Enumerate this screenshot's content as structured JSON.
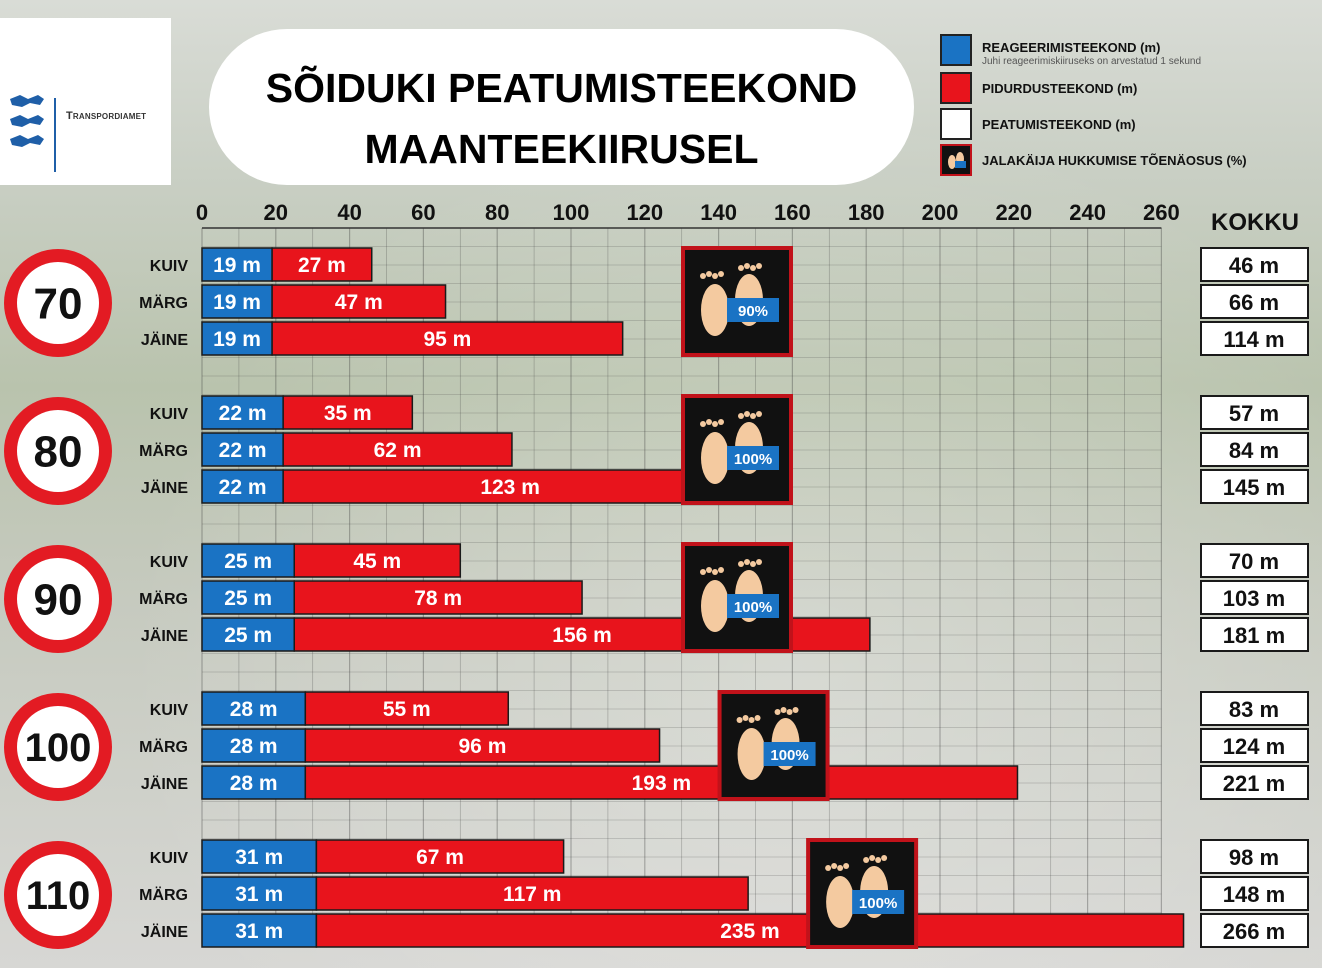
{
  "organization": "Transpordiamet",
  "title_lines": [
    "SÕIDUKI PEATUMISTEEKOND",
    "MAANTEEKIIRUSEL"
  ],
  "legend": [
    {
      "label": "REAGEERIMISTEEKOND (m)",
      "note": "Juhi reageerimiskiiruseks on arvestatud 1 sekund",
      "color": "#1a73c4"
    },
    {
      "label": "PIDURDUSTEEKOND (m)",
      "color": "#e8141c"
    },
    {
      "label": "PEATUMISTEEKOND (m)",
      "color": "#ffffff"
    },
    {
      "label": "JALAKÄIJA HUKKUMISE TÕENÄOSUS (%)",
      "icon": "footprints-icon"
    }
  ],
  "chart_data": {
    "type": "bar",
    "orientation": "horizontal",
    "stacked": true,
    "xlim": [
      0,
      260
    ],
    "x_ticks": [
      0,
      20,
      40,
      60,
      80,
      100,
      120,
      140,
      160,
      180,
      200,
      220,
      240,
      260
    ],
    "grid": true,
    "total_header": "KOKKU",
    "colors": {
      "reaction": "#1a73c4",
      "braking": "#e8141c"
    },
    "groups": [
      {
        "speed": "70",
        "fatality": "90%",
        "rows": [
          {
            "condition": "KUIV",
            "reaction": 19,
            "braking": 27,
            "total": 46
          },
          {
            "condition": "MÄRG",
            "reaction": 19,
            "braking": 47,
            "total": 66
          },
          {
            "condition": "JÄINE",
            "reaction": 19,
            "braking": 95,
            "total": 114
          }
        ]
      },
      {
        "speed": "80",
        "fatality": "100%",
        "rows": [
          {
            "condition": "KUIV",
            "reaction": 22,
            "braking": 35,
            "total": 57
          },
          {
            "condition": "MÄRG",
            "reaction": 22,
            "braking": 62,
            "total": 84
          },
          {
            "condition": "JÄINE",
            "reaction": 22,
            "braking": 123,
            "total": 145
          }
        ]
      },
      {
        "speed": "90",
        "fatality": "100%",
        "rows": [
          {
            "condition": "KUIV",
            "reaction": 25,
            "braking": 45,
            "total": 70
          },
          {
            "condition": "MÄRG",
            "reaction": 25,
            "braking": 78,
            "total": 103
          },
          {
            "condition": "JÄINE",
            "reaction": 25,
            "braking": 156,
            "total": 181
          }
        ]
      },
      {
        "speed": "100",
        "fatality": "100%",
        "rows": [
          {
            "condition": "KUIV",
            "reaction": 28,
            "braking": 55,
            "total": 83
          },
          {
            "condition": "MÄRG",
            "reaction": 28,
            "braking": 96,
            "total": 124
          },
          {
            "condition": "JÄINE",
            "reaction": 28,
            "braking": 193,
            "total": 221
          }
        ]
      },
      {
        "speed": "110",
        "fatality": "100%",
        "rows": [
          {
            "condition": "KUIV",
            "reaction": 31,
            "braking": 67,
            "total": 98
          },
          {
            "condition": "MÄRG",
            "reaction": 31,
            "braking": 117,
            "total": 148
          },
          {
            "condition": "JÄINE",
            "reaction": 31,
            "braking": 235,
            "total": 266
          }
        ]
      }
    ]
  }
}
